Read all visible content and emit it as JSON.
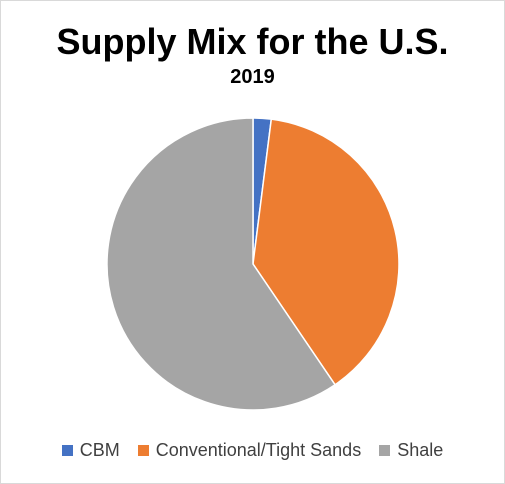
{
  "chart_data": {
    "type": "pie",
    "title": "Supply Mix for the U.S.",
    "subtitle": "2019",
    "categories": [
      "CBM",
      "Conventional/Tight Sands",
      "Shale"
    ],
    "values": [
      2,
      38.5,
      59.5
    ],
    "colors": [
      "#4472c4",
      "#ed7d31",
      "#a5a5a5"
    ],
    "start_angle_deg": 0,
    "direction": "clockwise",
    "legend_position": "bottom",
    "data_labels": false
  },
  "legend": {
    "items": [
      {
        "label": "CBM",
        "color": "#4472c4"
      },
      {
        "label": "Conventional/Tight Sands",
        "color": "#ed7d31"
      },
      {
        "label": "Shale",
        "color": "#a5a5a5"
      }
    ]
  }
}
